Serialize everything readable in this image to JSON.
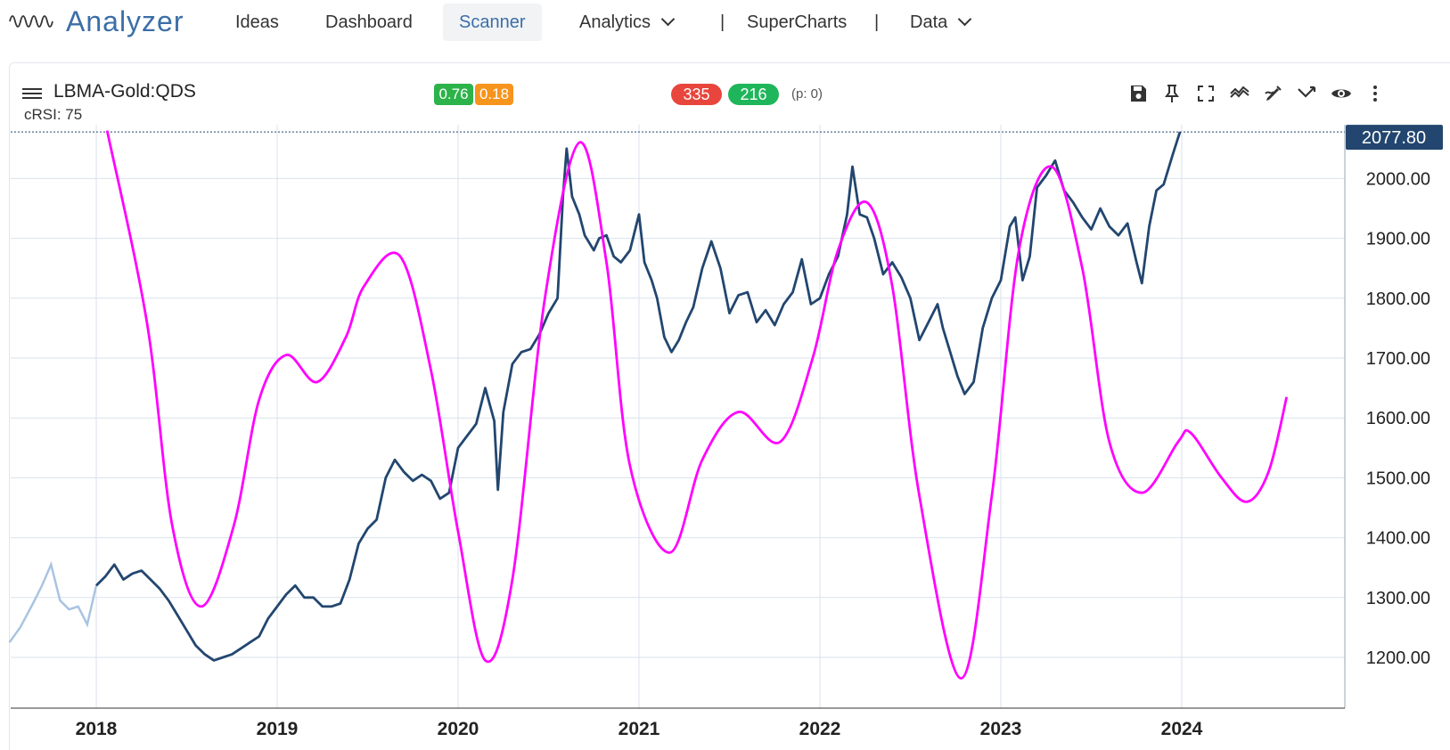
{
  "app": {
    "name": "Analyzer",
    "logo_icon": "waveform-icon"
  },
  "nav": {
    "ideas": "Ideas",
    "dashboard": "Dashboard",
    "scanner": "Scanner",
    "analytics": "Analytics",
    "superchart_sep_left": "|",
    "supercharts": "SuperCharts",
    "superchart_sep_right": "|",
    "data": "Data"
  },
  "chart_header": {
    "symbol": "LBMA-Gold:QDS",
    "crsi_label": "cRSI: 75",
    "badge_a": "0.76",
    "badge_b": "0.18",
    "count_red": "335",
    "count_green": "216",
    "p_note": "(p: 0)",
    "tools": [
      "save-icon",
      "pin-icon",
      "fullscreen-icon",
      "trend-icon",
      "draw-pen-icon",
      "fork-icon",
      "eye-icon",
      "more-vertical-icon"
    ]
  },
  "colors": {
    "price_line": "#22466f",
    "price_line_faded": "#a9c4e2",
    "cycle_line": "#ff00ff",
    "badge_green": "#2cb34a",
    "badge_orange": "#f7941d",
    "pill_red": "#e8453c",
    "pill_green": "#1fb65b",
    "last_price_bg": "#22466f",
    "grid": "#d9e2ec"
  },
  "chart_data": {
    "type": "line",
    "x_ticks": [
      "2018",
      "2019",
      "2020",
      "2021",
      "2022",
      "2023",
      "2024"
    ],
    "y_ticks": [
      "1200.00",
      "1300.00",
      "1400.00",
      "1500.00",
      "1600.00",
      "1700.00",
      "1800.00",
      "1900.00",
      "2000.00"
    ],
    "ylim": [
      1160,
      2090
    ],
    "xlim": [
      2017.52,
      2024.88
    ],
    "last_price": "2077.80",
    "grid": true,
    "series": [
      {
        "role": "price",
        "points": [
          [
            2017.52,
            1225
          ],
          [
            2017.58,
            1250
          ],
          [
            2017.65,
            1290
          ],
          [
            2017.7,
            1320
          ],
          [
            2017.75,
            1355
          ],
          [
            2017.8,
            1295
          ],
          [
            2017.85,
            1280
          ],
          [
            2017.9,
            1285
          ],
          [
            2017.95,
            1255
          ],
          [
            2018.0,
            1320
          ],
          [
            2018.05,
            1335
          ],
          [
            2018.1,
            1355
          ],
          [
            2018.15,
            1330
          ],
          [
            2018.2,
            1340
          ],
          [
            2018.25,
            1345
          ],
          [
            2018.3,
            1330
          ],
          [
            2018.35,
            1315
          ],
          [
            2018.4,
            1295
          ],
          [
            2018.45,
            1270
          ],
          [
            2018.5,
            1245
          ],
          [
            2018.55,
            1220
          ],
          [
            2018.6,
            1205
          ],
          [
            2018.65,
            1195
          ],
          [
            2018.7,
            1200
          ],
          [
            2018.75,
            1205
          ],
          [
            2018.8,
            1215
          ],
          [
            2018.85,
            1225
          ],
          [
            2018.9,
            1235
          ],
          [
            2018.95,
            1265
          ],
          [
            2019.0,
            1285
          ],
          [
            2019.05,
            1305
          ],
          [
            2019.1,
            1320
          ],
          [
            2019.15,
            1300
          ],
          [
            2019.2,
            1300
          ],
          [
            2019.25,
            1285
          ],
          [
            2019.3,
            1285
          ],
          [
            2019.35,
            1290
          ],
          [
            2019.4,
            1330
          ],
          [
            2019.45,
            1390
          ],
          [
            2019.5,
            1415
          ],
          [
            2019.55,
            1430
          ],
          [
            2019.6,
            1500
          ],
          [
            2019.65,
            1530
          ],
          [
            2019.7,
            1510
          ],
          [
            2019.75,
            1495
          ],
          [
            2019.8,
            1505
          ],
          [
            2019.85,
            1495
          ],
          [
            2019.9,
            1465
          ],
          [
            2019.95,
            1475
          ],
          [
            2020.0,
            1550
          ],
          [
            2020.05,
            1570
          ],
          [
            2020.1,
            1590
          ],
          [
            2020.15,
            1650
          ],
          [
            2020.2,
            1595
          ],
          [
            2020.22,
            1480
          ],
          [
            2020.25,
            1610
          ],
          [
            2020.3,
            1690
          ],
          [
            2020.35,
            1710
          ],
          [
            2020.4,
            1715
          ],
          [
            2020.45,
            1740
          ],
          [
            2020.5,
            1775
          ],
          [
            2020.55,
            1800
          ],
          [
            2020.58,
            1970
          ],
          [
            2020.6,
            2050
          ],
          [
            2020.63,
            1970
          ],
          [
            2020.67,
            1940
          ],
          [
            2020.7,
            1905
          ],
          [
            2020.75,
            1880
          ],
          [
            2020.78,
            1900
          ],
          [
            2020.82,
            1905
          ],
          [
            2020.86,
            1870
          ],
          [
            2020.9,
            1860
          ],
          [
            2020.95,
            1880
          ],
          [
            2021.0,
            1940
          ],
          [
            2021.03,
            1860
          ],
          [
            2021.07,
            1830
          ],
          [
            2021.1,
            1800
          ],
          [
            2021.14,
            1735
          ],
          [
            2021.18,
            1710
          ],
          [
            2021.22,
            1730
          ],
          [
            2021.26,
            1760
          ],
          [
            2021.3,
            1785
          ],
          [
            2021.35,
            1850
          ],
          [
            2021.4,
            1895
          ],
          [
            2021.45,
            1850
          ],
          [
            2021.5,
            1775
          ],
          [
            2021.55,
            1805
          ],
          [
            2021.6,
            1810
          ],
          [
            2021.65,
            1760
          ],
          [
            2021.7,
            1780
          ],
          [
            2021.75,
            1755
          ],
          [
            2021.8,
            1790
          ],
          [
            2021.85,
            1810
          ],
          [
            2021.9,
            1865
          ],
          [
            2021.95,
            1790
          ],
          [
            2022.0,
            1800
          ],
          [
            2022.05,
            1840
          ],
          [
            2022.1,
            1870
          ],
          [
            2022.15,
            1940
          ],
          [
            2022.18,
            2020
          ],
          [
            2022.22,
            1940
          ],
          [
            2022.26,
            1935
          ],
          [
            2022.3,
            1900
          ],
          [
            2022.35,
            1840
          ],
          [
            2022.4,
            1860
          ],
          [
            2022.45,
            1835
          ],
          [
            2022.5,
            1800
          ],
          [
            2022.55,
            1730
          ],
          [
            2022.6,
            1760
          ],
          [
            2022.65,
            1790
          ],
          [
            2022.68,
            1750
          ],
          [
            2022.72,
            1710
          ],
          [
            2022.76,
            1670
          ],
          [
            2022.8,
            1640
          ],
          [
            2022.85,
            1660
          ],
          [
            2022.9,
            1750
          ],
          [
            2022.95,
            1800
          ],
          [
            2023.0,
            1830
          ],
          [
            2023.05,
            1920
          ],
          [
            2023.08,
            1935
          ],
          [
            2023.12,
            1830
          ],
          [
            2023.16,
            1870
          ],
          [
            2023.2,
            1985
          ],
          [
            2023.25,
            2005
          ],
          [
            2023.3,
            2030
          ],
          [
            2023.35,
            1980
          ],
          [
            2023.4,
            1960
          ],
          [
            2023.45,
            1935
          ],
          [
            2023.5,
            1915
          ],
          [
            2023.55,
            1950
          ],
          [
            2023.6,
            1920
          ],
          [
            2023.65,
            1905
          ],
          [
            2023.7,
            1925
          ],
          [
            2023.75,
            1860
          ],
          [
            2023.78,
            1825
          ],
          [
            2023.82,
            1920
          ],
          [
            2023.86,
            1980
          ],
          [
            2023.9,
            1990
          ],
          [
            2023.95,
            2040
          ],
          [
            2023.99,
            2077.8
          ]
        ]
      },
      {
        "role": "cycle",
        "points": [
          [
            2018.06,
            2080
          ],
          [
            2018.28,
            1760
          ],
          [
            2018.42,
            1420
          ],
          [
            2018.58,
            1285
          ],
          [
            2018.76,
            1420
          ],
          [
            2018.9,
            1630
          ],
          [
            2019.05,
            1705
          ],
          [
            2019.22,
            1660
          ],
          [
            2019.38,
            1735
          ],
          [
            2019.48,
            1820
          ],
          [
            2019.68,
            1870
          ],
          [
            2019.85,
            1680
          ],
          [
            2020.0,
            1410
          ],
          [
            2020.15,
            1195
          ],
          [
            2020.3,
            1330
          ],
          [
            2020.48,
            1800
          ],
          [
            2020.67,
            2060
          ],
          [
            2020.82,
            1860
          ],
          [
            2020.95,
            1520
          ],
          [
            2021.17,
            1375
          ],
          [
            2021.35,
            1530
          ],
          [
            2021.55,
            1610
          ],
          [
            2021.78,
            1560
          ],
          [
            2021.96,
            1700
          ],
          [
            2022.1,
            1880
          ],
          [
            2022.26,
            1960
          ],
          [
            2022.4,
            1820
          ],
          [
            2022.55,
            1470
          ],
          [
            2022.78,
            1165
          ],
          [
            2022.95,
            1470
          ],
          [
            2023.1,
            1880
          ],
          [
            2023.28,
            2020
          ],
          [
            2023.45,
            1850
          ],
          [
            2023.6,
            1560
          ],
          [
            2023.78,
            1475
          ],
          [
            2023.98,
            1560
          ],
          [
            2024.05,
            1575
          ],
          [
            2024.22,
            1500
          ],
          [
            2024.36,
            1460
          ],
          [
            2024.48,
            1510
          ],
          [
            2024.58,
            1635
          ]
        ]
      }
    ]
  }
}
